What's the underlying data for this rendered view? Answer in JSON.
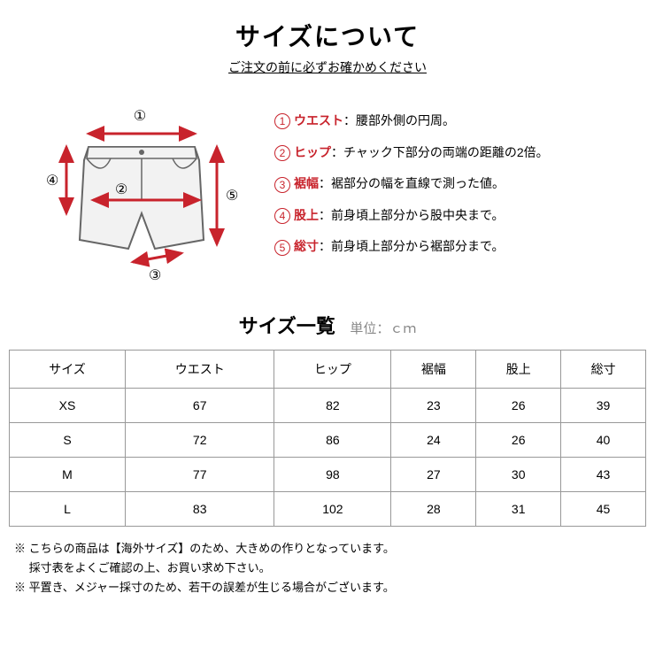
{
  "header": {
    "title": "サイズについて",
    "subtitle": "ご注文の前に必ずお確かめください"
  },
  "diagram": {
    "shorts_fill": "#f2f2f2",
    "shorts_stroke": "#666666",
    "arrow_color": "#c8232c",
    "label_color": "#000000",
    "labels": [
      "①",
      "②",
      "③",
      "④",
      "⑤"
    ]
  },
  "measurements": [
    {
      "num": "1",
      "label": "ウエスト",
      "desc": "：腰部外側の円周。"
    },
    {
      "num": "2",
      "label": "ヒップ",
      "desc": "：チャック下部分の両端の距離の2倍。"
    },
    {
      "num": "3",
      "label": "裾幅",
      "desc": "：裾部分の幅を直線で測った値。"
    },
    {
      "num": "4",
      "label": "股上",
      "desc": "：前身頃上部分から股中央まで。"
    },
    {
      "num": "5",
      "label": "総寸",
      "desc": "：前身頃上部分から裾部分まで。"
    }
  ],
  "table": {
    "title": "サイズ一覧",
    "unit": "単位：ｃｍ",
    "columns": [
      "サイズ",
      "ウエスト",
      "ヒップ",
      "裾幅",
      "股上",
      "総寸"
    ],
    "rows": [
      [
        "XS",
        "67",
        "82",
        "23",
        "26",
        "39"
      ],
      [
        "S",
        "72",
        "86",
        "24",
        "26",
        "40"
      ],
      [
        "M",
        "77",
        "98",
        "27",
        "30",
        "43"
      ],
      [
        "L",
        "83",
        "102",
        "28",
        "31",
        "45"
      ]
    ]
  },
  "notes": [
    "※ こちらの商品は【海外サイズ】のため、大きめの作りとなっています。",
    "　 採寸表をよくご確認の上、お買い求め下さい。",
    "※ 平置き、メジャー採寸のため、若干の誤差が生じる場合がございます。"
  ]
}
